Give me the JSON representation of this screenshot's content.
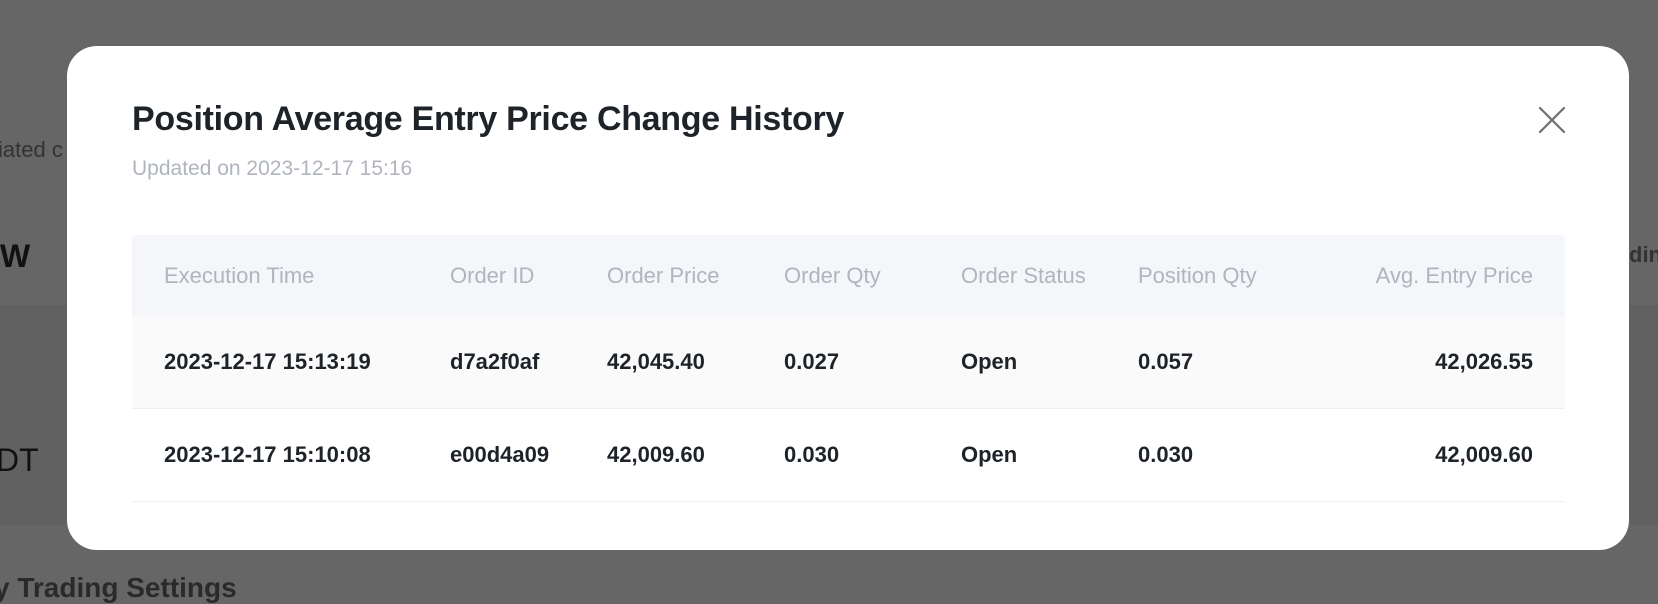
{
  "background": {
    "texts": [
      "iated c",
      "W",
      "DT",
      "y Trading Settings",
      "din"
    ]
  },
  "modal": {
    "title": "Position Average Entry Price Change History",
    "subtitle": "Updated on 2023-12-17 15:16",
    "close_icon": "close-icon",
    "table": {
      "columns": [
        "Execution Time",
        "Order ID",
        "Order Price",
        "Order Qty",
        "Order Status",
        "Position Qty",
        "Avg. Entry Price"
      ],
      "rows": [
        [
          "2023-12-17 15:13:19",
          "d7a2f0af",
          "42,045.40",
          "0.027",
          "Open",
          "0.057",
          "42,026.55"
        ],
        [
          "2023-12-17 15:10:08",
          "e00d4a09",
          "42,009.60",
          "0.030",
          "Open",
          "0.030",
          "42,009.60"
        ]
      ]
    }
  }
}
